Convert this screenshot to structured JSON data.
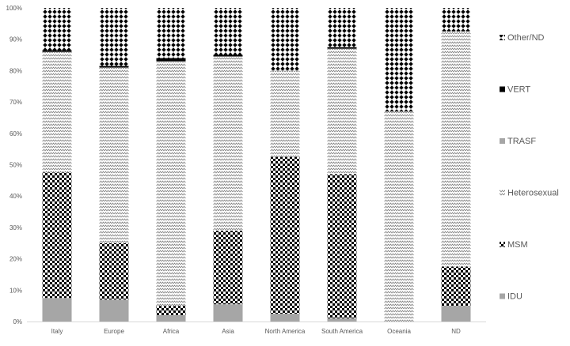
{
  "chart_data": {
    "type": "bar",
    "stacked": true,
    "percent": true,
    "categories": [
      "Italy",
      "Europe",
      "Africa",
      "Asia",
      "North America",
      "South America",
      "Oceania",
      "ND"
    ],
    "series": [
      {
        "name": "IDU",
        "pattern": "solid-gray",
        "values": [
          7.5,
          7,
          2,
          5.5,
          2.5,
          1,
          0,
          5
        ]
      },
      {
        "name": "MSM",
        "pattern": "checker",
        "values": [
          40,
          18,
          3,
          23.5,
          50,
          46,
          0,
          12.5
        ]
      },
      {
        "name": "Heterosexual",
        "pattern": "zigzag",
        "values": [
          38.5,
          56,
          78,
          55.5,
          27.5,
          40,
          67,
          75
        ]
      },
      {
        "name": "TRASF",
        "pattern": "solid-gray",
        "values": [
          0,
          0,
          0,
          0,
          0,
          0,
          0,
          0
        ]
      },
      {
        "name": "VERT",
        "pattern": "solid-black",
        "values": [
          0.5,
          0.5,
          1,
          0.5,
          0,
          0.5,
          0,
          0
        ]
      },
      {
        "name": "Other/ND",
        "pattern": "diamond",
        "values": [
          13.5,
          18.5,
          16,
          15,
          20,
          12.5,
          33,
          7.5
        ]
      }
    ],
    "legend_order": [
      "Other/ND",
      "VERT",
      "TRASF",
      "Heterosexual",
      "MSM",
      "IDU"
    ],
    "legend_position": "right",
    "ylim": [
      0,
      100
    ],
    "yticks": [
      "0%",
      "10%",
      "20%",
      "30%",
      "40%",
      "50%",
      "60%",
      "70%",
      "80%",
      "90%",
      "100%"
    ],
    "title": "",
    "xlabel": "",
    "ylabel": "",
    "colors": {
      "gray": "#a6a6a6",
      "black": "#000000",
      "text": "#595959",
      "axis": "#d9d9d9"
    }
  }
}
